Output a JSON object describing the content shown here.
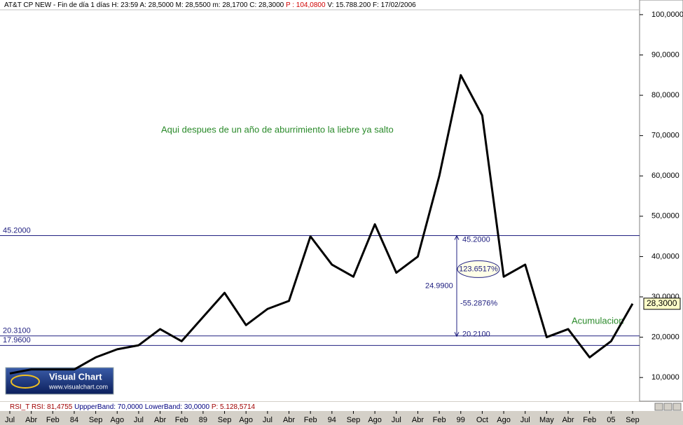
{
  "chart_data": {
    "type": "line",
    "header": [
      "AT&T CP NEW - Fin de día 1 días",
      "H: 23:59",
      "A: 28,5000",
      "M: 28,5500",
      "m: 28,1700",
      "C: 28,3000",
      "P : 104,0800",
      "V: 15.788.200",
      "F: 17/02/2006"
    ],
    "categories": [
      "Jul",
      "Abr",
      "Feb",
      "84",
      "Sep",
      "Ago",
      "Jul",
      "Abr",
      "Feb",
      "89",
      "Sep",
      "Ago",
      "Jul",
      "Abr",
      "Feb",
      "94",
      "Sep",
      "Ago",
      "Jul",
      "Abr",
      "Feb",
      "99",
      "Oct",
      "Ago",
      "Jul",
      "May",
      "Abr",
      "Feb",
      "05",
      "Sep"
    ],
    "series": [
      {
        "color": "#000000",
        "values": [
          11,
          12,
          12,
          12,
          15,
          17,
          18,
          22,
          19,
          25,
          31,
          23,
          27,
          29,
          45,
          38,
          35,
          48,
          36,
          40,
          60,
          85,
          75,
          35,
          38,
          20,
          22,
          15,
          19,
          28.3
        ]
      }
    ],
    "ylim": [
      4.3,
      101.2
    ],
    "yticks": [
      {
        "value": 10,
        "label": "10,0000"
      },
      {
        "value": 20,
        "label": "20,0000"
      },
      {
        "value": 30,
        "label": "30,0000"
      },
      {
        "value": 40,
        "label": "40,0000"
      },
      {
        "value": 50,
        "label": "50,0000"
      },
      {
        "value": 60,
        "label": "60,0000"
      },
      {
        "value": 70,
        "label": "70,0000"
      },
      {
        "value": 80,
        "label": "80,0000"
      },
      {
        "value": 90,
        "label": "90,0000"
      },
      {
        "value": 100,
        "label": "100,0000"
      }
    ],
    "last_price": {
      "value": 28.3,
      "label": "28,3000"
    },
    "hlines": [
      {
        "value": 45.2,
        "label": "45.2000"
      },
      {
        "value": 20.31,
        "label": "20.3100"
      },
      {
        "value": 17.96,
        "label": "17.9600"
      }
    ],
    "measure": {
      "top": {
        "value": 45.2,
        "label": "45.2000"
      },
      "bottom": {
        "value": 20.21,
        "label": "20.2100"
      },
      "distance": {
        "value": 24.99,
        "label": "24.9900"
      },
      "percent_up": {
        "value": 123.6517,
        "label": "123.6517%"
      },
      "percent_down": {
        "value": -55.2876,
        "label": "-55.2876%"
      }
    },
    "annotations": [
      "Aqui despues de un año de aburrimiento la liebre ya salto",
      "Acumulacion"
    ],
    "logo": [
      "Visual Chart",
      "www.visualchart.com"
    ],
    "indicator": [
      "RSI_T",
      "RSI: 81,4755",
      "UppperBand: 70,0000",
      "LowerBand: 30,0000",
      "P: 5.128,5714"
    ]
  }
}
